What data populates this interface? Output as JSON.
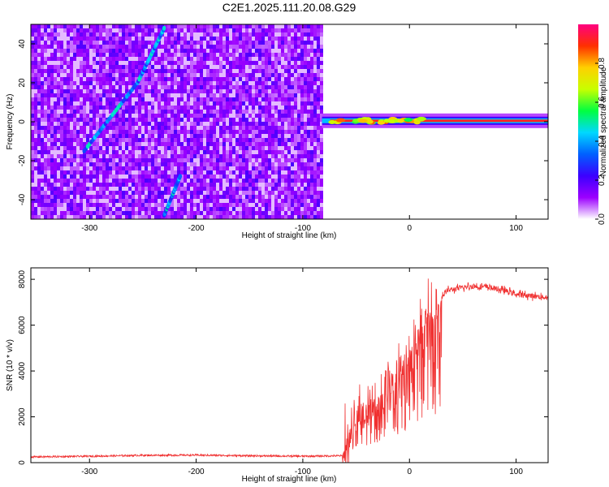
{
  "title": "C2E1.2025.111.20.08.G29",
  "chart_data": [
    {
      "type": "heatmap",
      "xlabel": "Height of straight line (km)",
      "ylabel": "Frequency (Hz)",
      "xlim": [
        -355,
        130
      ],
      "ylim": [
        -50,
        50
      ],
      "xticks": [
        -300,
        -200,
        -100,
        0,
        100
      ],
      "yticks": [
        -40,
        -20,
        0,
        20,
        40
      ],
      "colorbar": {
        "label": "Normalized spectral amplitude",
        "range": [
          0,
          1
        ],
        "ticks": [
          0.0,
          0.2,
          0.4,
          0.6,
          0.8
        ],
        "colormap": [
          "#ffffff",
          "#9c00ff",
          "#3c00ff",
          "#0060ff",
          "#00d8ff",
          "#00ff40",
          "#c8ff00",
          "#ffd000",
          "#ff3000",
          "#ff0080"
        ]
      },
      "noise_region_x": [
        -355,
        -82
      ],
      "signal_line": {
        "x_start": -82,
        "x_end": 130,
        "frequency": 0.5
      },
      "doppler_traces": [
        {
          "x": [
            -305,
            -255,
            -230
          ],
          "y": [
            -15,
            20,
            48
          ]
        },
        {
          "x": [
            -230,
            -215
          ],
          "y": [
            -48,
            -28
          ]
        }
      ],
      "grid": false
    },
    {
      "type": "line",
      "xlabel": "Height of straight line (km)",
      "ylabel": "SNR (10 * v/v)",
      "xlim": [
        -355,
        130
      ],
      "ylim": [
        0,
        8500
      ],
      "xticks": [
        -300,
        -200,
        -100,
        0,
        100
      ],
      "yticks": [
        0,
        2000,
        4000,
        6000,
        8000
      ],
      "color": "#f03030",
      "series": [
        {
          "x": [
            -355,
            -300,
            -250,
            -200,
            -150,
            -100,
            -63,
            -55,
            -45,
            -35,
            -25,
            -15,
            -5,
            5,
            15,
            25,
            35,
            45,
            60,
            75,
            90,
            100,
            110,
            120,
            130
          ],
          "y": [
            250,
            280,
            320,
            330,
            300,
            280,
            300,
            1800,
            2200,
            2700,
            3200,
            3800,
            4500,
            5300,
            6200,
            7000,
            7500,
            7600,
            7700,
            7650,
            7500,
            7350,
            7300,
            7250,
            7200
          ]
        }
      ],
      "grid": false
    }
  ]
}
